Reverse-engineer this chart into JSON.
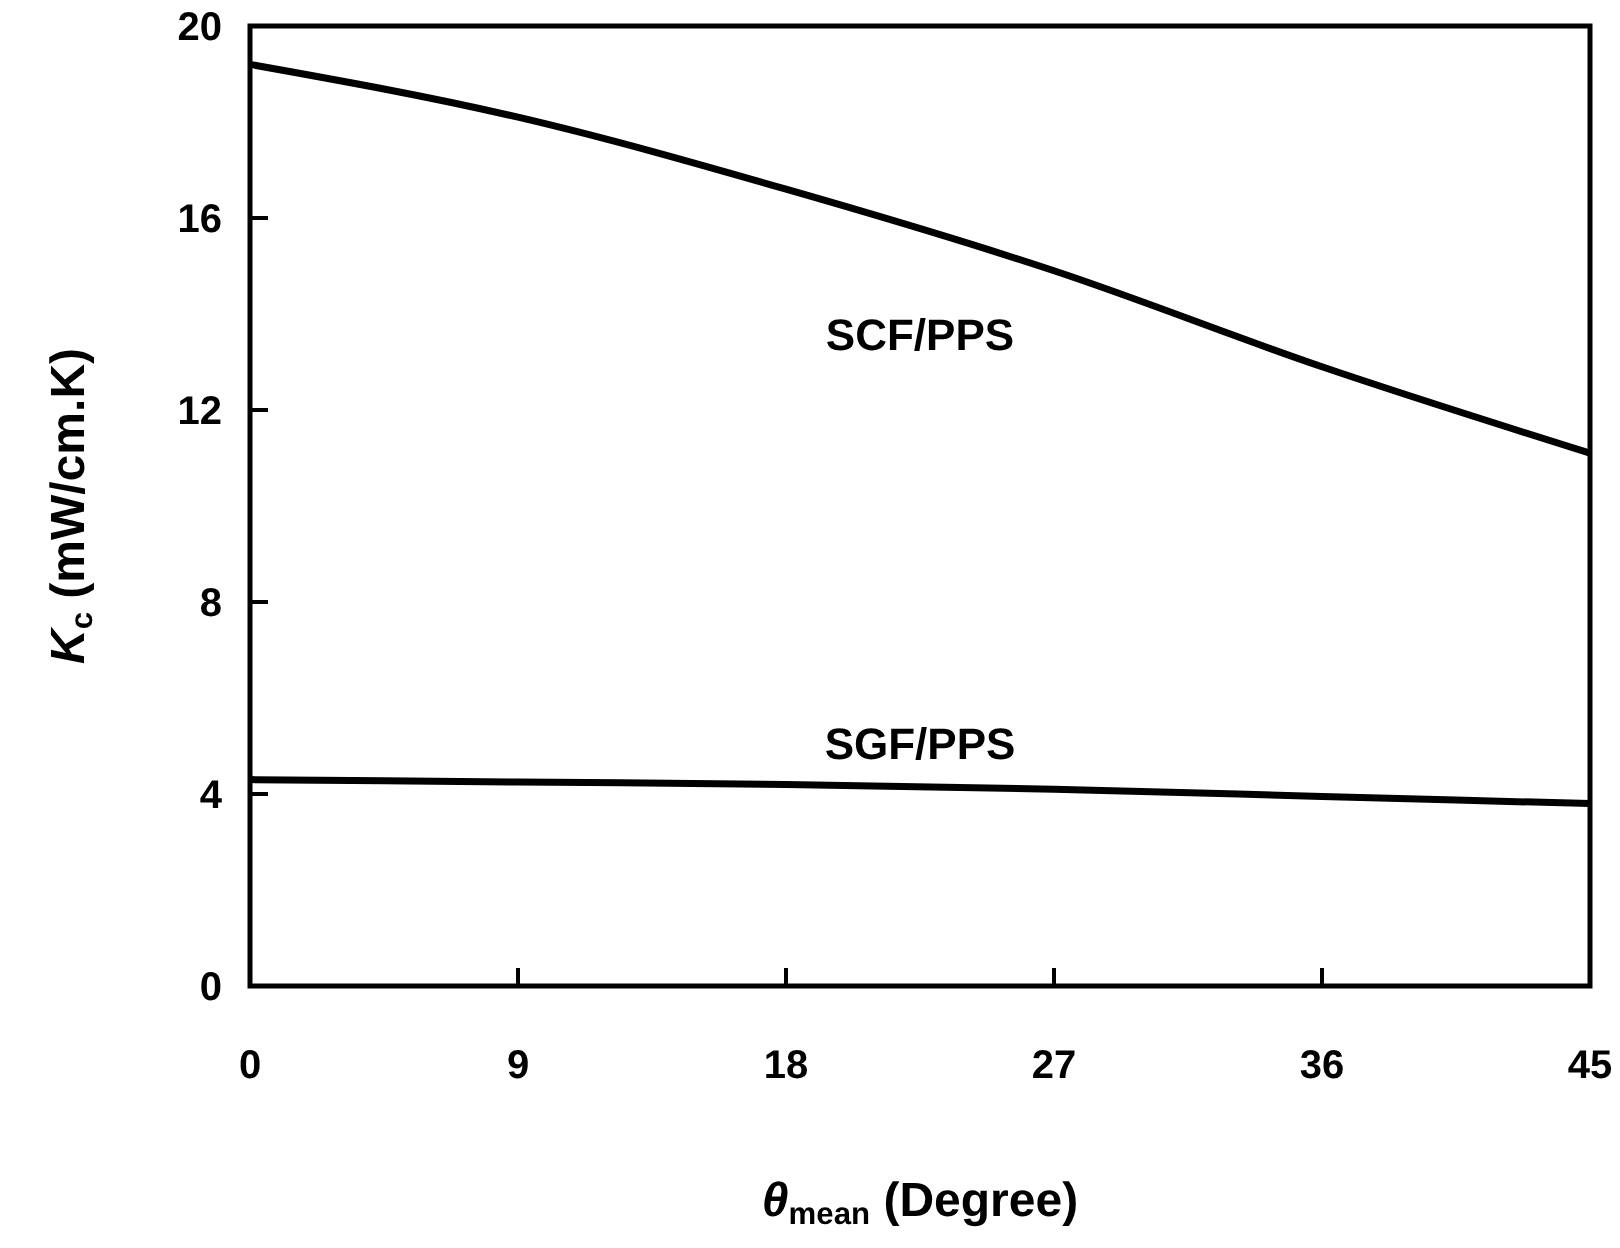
{
  "chart_data": {
    "type": "line",
    "xlabel": "θ$_{mean}$ (Degree)",
    "ylabel": "K$_{c}$ (mW/cm.K)",
    "x": [
      0,
      9,
      18,
      27,
      36,
      45
    ],
    "xlim": [
      0,
      45
    ],
    "xticks": [
      0,
      9,
      18,
      27,
      36,
      45
    ],
    "ylim": [
      0,
      20
    ],
    "yticks": [
      0,
      4,
      8,
      12,
      16,
      20
    ],
    "grid": false,
    "marker": "none",
    "line_style": "solid",
    "series": [
      {
        "name": "SCF/PPS",
        "color": "#000000",
        "values": [
          19.2,
          18.1,
          16.6,
          14.9,
          12.9,
          11.1
        ]
      },
      {
        "name": "SGF/PPS",
        "color": "#000000",
        "values": [
          4.3,
          4.25,
          4.2,
          4.1,
          3.95,
          3.8
        ]
      }
    ]
  }
}
